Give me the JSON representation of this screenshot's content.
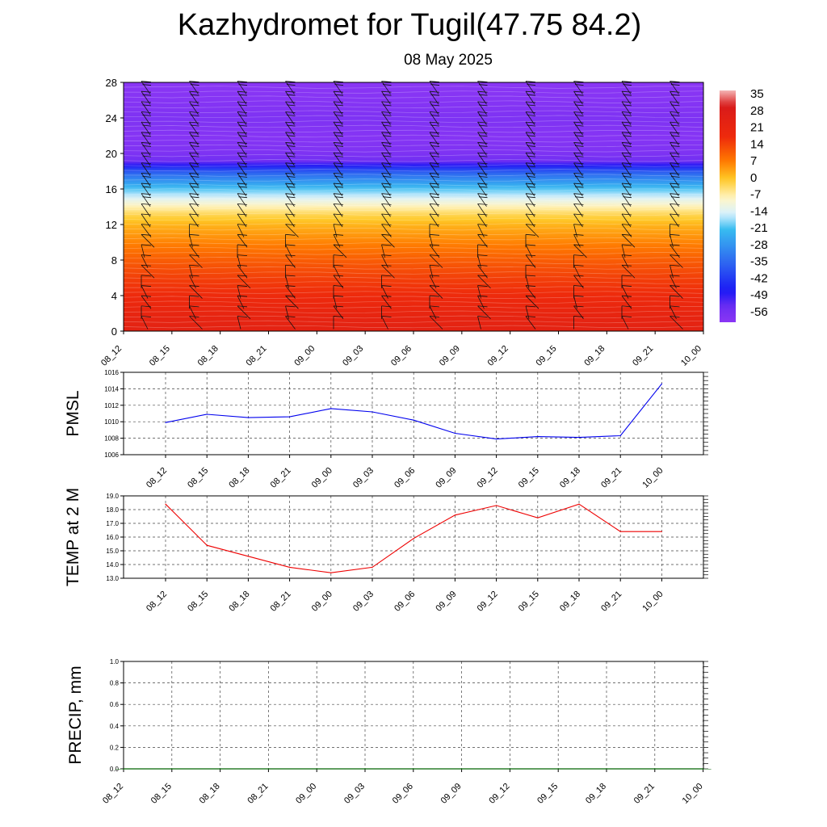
{
  "title": "Kazhydromet for Tugil(47.75 84.2)",
  "subtitle": "08 May 2025",
  "chart_data": [
    {
      "type": "heatmap",
      "name": "vertical-section",
      "y_ticks": [
        0,
        4,
        8,
        12,
        16,
        20,
        24,
        28
      ],
      "ylim": [
        0,
        28
      ],
      "x_tick_labels": [
        "08_12",
        "08_15",
        "08_18",
        "08_21",
        "09_00",
        "09_03",
        "09_06",
        "09_09",
        "09_12",
        "09_15",
        "09_18",
        "09_21",
        "10_00"
      ],
      "profile_levels": [
        0,
        2,
        4,
        6,
        8,
        10,
        12,
        13,
        14,
        16,
        18,
        19,
        20,
        22,
        24,
        26,
        28
      ],
      "profile_values": [
        28,
        25,
        21,
        18,
        14,
        9,
        4,
        0,
        -6,
        -20,
        -38,
        -56,
        -60,
        -62,
        -60,
        -62,
        -63
      ],
      "colorbar": {
        "labels": [
          "35",
          "28",
          "21",
          "14",
          "7",
          "0",
          "-7",
          "-14",
          "-21",
          "-28",
          "-35",
          "-42",
          "-49",
          "-56"
        ],
        "range": [
          -63,
          42
        ],
        "stops": [
          {
            "v": 42,
            "c": "#f4b4b4"
          },
          {
            "v": 35,
            "c": "#d81a1a"
          },
          {
            "v": 21,
            "c": "#ee2a0c"
          },
          {
            "v": 10,
            "c": "#ff7a00"
          },
          {
            "v": 2,
            "c": "#ffc825"
          },
          {
            "v": -7,
            "c": "#fff6c8"
          },
          {
            "v": -14,
            "c": "#d7f1ff"
          },
          {
            "v": -21,
            "c": "#38bcf0"
          },
          {
            "v": -35,
            "c": "#2f6cf0"
          },
          {
            "v": -49,
            "c": "#1b18f5"
          },
          {
            "v": -56,
            "c": "#6d2ef2"
          },
          {
            "v": -63,
            "c": "#8a36f4"
          }
        ]
      }
    },
    {
      "type": "line",
      "name": "pmsl",
      "ylabel": "PMSL",
      "categories": [
        "08_12",
        "08_15",
        "08_18",
        "08_21",
        "09_00",
        "09_03",
        "09_06",
        "09_09",
        "09_12",
        "09_15",
        "09_18",
        "09_21",
        "10_00"
      ],
      "values": [
        1009.9,
        1010.9,
        1010.5,
        1010.6,
        1011.6,
        1011.2,
        1010.2,
        1008.6,
        1007.9,
        1008.2,
        1008.1,
        1008.3,
        1014.6
      ],
      "ylim": [
        1006,
        1016
      ],
      "y_ticks": [
        "1006",
        "1008",
        "1010",
        "1012",
        "1014",
        "1016"
      ],
      "color": "#0000ee"
    },
    {
      "type": "line",
      "name": "temp",
      "ylabel": "TEMP at 2 M",
      "categories": [
        "08_12",
        "08_15",
        "08_18",
        "08_21",
        "09_00",
        "09_03",
        "09_06",
        "09_09",
        "09_12",
        "09_15",
        "09_18",
        "09_21",
        "10_00"
      ],
      "values": [
        18.4,
        15.4,
        14.6,
        13.8,
        13.4,
        13.8,
        15.9,
        17.6,
        18.3,
        17.4,
        18.4,
        16.4,
        16.4
      ],
      "ylim": [
        13.0,
        19.0
      ],
      "y_ticks": [
        "13.0",
        "14.0",
        "15.0",
        "16.0",
        "17.0",
        "18.0",
        "19.0"
      ],
      "color": "#ee0000"
    },
    {
      "type": "bar",
      "name": "precip",
      "ylabel": "PRECIP, mm",
      "categories": [
        "08_12",
        "08_15",
        "08_18",
        "08_21",
        "09_00",
        "09_03",
        "09_06",
        "09_09",
        "09_12",
        "09_15",
        "09_18",
        "09_21",
        "10_00"
      ],
      "values": [
        0,
        0,
        0,
        0,
        0,
        0,
        0,
        0,
        0,
        0,
        0,
        0,
        0
      ],
      "ylim": [
        0.0,
        1.0
      ],
      "y_ticks": [
        "0.0",
        "0.2",
        "0.4",
        "0.6",
        "0.8",
        "1.0"
      ],
      "color": "#006400"
    }
  ]
}
